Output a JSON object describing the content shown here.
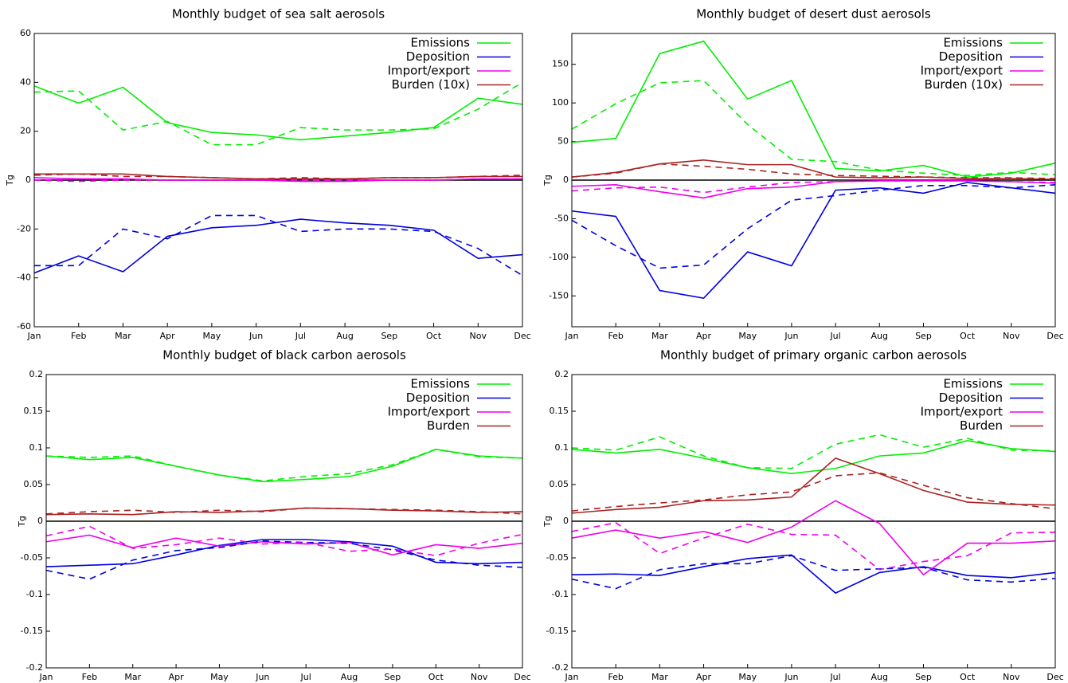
{
  "chart_data": [
    {
      "type": "line",
      "title": "Monthly budget of sea salt  aerosols",
      "y_label": "Tg",
      "categories": [
        "Jan",
        "Feb",
        "Mar",
        "Apr",
        "May",
        "Jun",
        "Jul",
        "Aug",
        "Sep",
        "Oct",
        "Nov",
        "Dec"
      ],
      "ylim": [
        -60,
        60
      ],
      "yticks": [
        -60,
        -40,
        -20,
        0,
        20,
        40,
        60
      ],
      "series": [
        {
          "name": "Emissions",
          "color": "#00ee00",
          "values": [
            38.5,
            31.5,
            38,
            23.5,
            19.5,
            18.5,
            16.5,
            18,
            19.5,
            21.5,
            33.5,
            31
          ]
        },
        {
          "name": "Deposition",
          "color": "#0000dd",
          "values": [
            -38,
            -31,
            -37.5,
            -23,
            -19.5,
            -18.5,
            -16,
            -17.5,
            -18.5,
            -20.5,
            -32,
            -30.5
          ]
        },
        {
          "name": "Import/export",
          "color": "#ee00ee",
          "values": [
            1,
            0.5,
            0.5,
            0,
            0,
            0,
            -0.5,
            -0.5,
            0,
            0,
            0.5,
            0.5
          ]
        },
        {
          "name": "Burden (10x)",
          "color": "#aa2222",
          "values": [
            2.5,
            2.5,
            2.5,
            1.5,
            1,
            0.5,
            0.5,
            0.5,
            1,
            1,
            1.5,
            1.5
          ]
        },
        {
          "color": "#00ee00",
          "dash": true,
          "values": [
            36,
            36.5,
            20.5,
            24,
            14.5,
            14.5,
            21.5,
            20.5,
            20.5,
            21,
            29,
            40
          ]
        },
        {
          "color": "#0000dd",
          "dash": true,
          "values": [
            -35,
            -35,
            -20,
            -24,
            -14.5,
            -14.5,
            -21,
            -20,
            -20,
            -21,
            -28,
            -39
          ]
        },
        {
          "color": "#ee00ee",
          "dash": true,
          "values": [
            0,
            -0.5,
            0,
            0,
            0,
            0,
            0,
            0,
            0,
            0,
            0.5,
            0.5
          ]
        },
        {
          "color": "#aa2222",
          "dash": true,
          "values": [
            2,
            2.5,
            1.5,
            1.5,
            1,
            0.5,
            1,
            0.5,
            1,
            1,
            1.5,
            2
          ]
        }
      ]
    },
    {
      "type": "line",
      "title": "Monthly budget of desert dust aerosols",
      "y_label": "Tg",
      "categories": [
        "Jan",
        "Feb",
        "Mar",
        "Apr",
        "May",
        "Jun",
        "Jul",
        "Aug",
        "Sep",
        "Oct",
        "Nov",
        "Dec"
      ],
      "ylim": [
        -190,
        190
      ],
      "yticks": [
        -150,
        -100,
        -50,
        0,
        50,
        100,
        150
      ],
      "series": [
        {
          "name": "Emissions",
          "color": "#00ee00",
          "values": [
            49,
            54,
            164,
            180,
            105,
            129,
            15,
            12,
            19,
            4,
            9,
            22
          ]
        },
        {
          "name": "Deposition",
          "color": "#0000dd",
          "values": [
            -40,
            -47,
            -143,
            -153,
            -93,
            -111,
            -13,
            -10,
            -17,
            -3,
            -10,
            -17
          ]
        },
        {
          "name": "Import/export",
          "color": "#ee00ee",
          "values": [
            -8,
            -6,
            -15,
            -23,
            -11,
            -9,
            -2,
            -1,
            -1,
            -1,
            -2,
            -4
          ]
        },
        {
          "name": "Burden (10x)",
          "color": "#aa2222",
          "values": [
            4,
            10,
            21,
            26,
            20,
            20,
            4,
            3,
            4,
            2,
            2,
            1
          ]
        },
        {
          "color": "#00ee00",
          "dash": true,
          "values": [
            66,
            99,
            126,
            129,
            72,
            27,
            24,
            13,
            9,
            6,
            10,
            7
          ]
        },
        {
          "color": "#0000dd",
          "dash": true,
          "values": [
            -52,
            -85,
            -114,
            -110,
            -63,
            -26,
            -20,
            -13,
            -7,
            -7,
            -10,
            -6
          ]
        },
        {
          "color": "#ee00ee",
          "dash": true,
          "values": [
            -14,
            -10,
            -9,
            -16,
            -9,
            -3,
            -2,
            -1,
            -1,
            -1,
            -2,
            -3
          ]
        },
        {
          "color": "#aa2222",
          "dash": true,
          "values": [
            4,
            9,
            21,
            18,
            14,
            8,
            6,
            5,
            4,
            3,
            3,
            2
          ]
        }
      ]
    },
    {
      "type": "line",
      "title": "Monthly budget of black carbon aerosols",
      "y_label": "Tg",
      "categories": [
        "Jan",
        "Feb",
        "Mar",
        "Apr",
        "May",
        "Jun",
        "Jul",
        "Aug",
        "Sep",
        "Oct",
        "Nov",
        "Dec"
      ],
      "ylim": [
        -0.2,
        0.2
      ],
      "yticks": [
        -0.2,
        -0.15,
        -0.1,
        -0.05,
        0,
        0.05,
        0.1,
        0.15,
        0.2
      ],
      "series": [
        {
          "name": "Emissions",
          "color": "#00ee00",
          "values": [
            0.089,
            0.084,
            0.087,
            0.075,
            0.063,
            0.054,
            0.057,
            0.061,
            0.075,
            0.098,
            0.089,
            0.086
          ]
        },
        {
          "name": "Deposition",
          "color": "#0000dd",
          "values": [
            -0.062,
            -0.06,
            -0.058,
            -0.046,
            -0.033,
            -0.025,
            -0.025,
            -0.028,
            -0.034,
            -0.056,
            -0.058,
            -0.056
          ]
        },
        {
          "name": "Import/export",
          "color": "#ee00ee",
          "values": [
            -0.028,
            -0.019,
            -0.036,
            -0.023,
            -0.034,
            -0.028,
            -0.031,
            -0.029,
            -0.046,
            -0.032,
            -0.037,
            -0.03
          ]
        },
        {
          "name": "Burden",
          "color": "#aa2222",
          "values": [
            0.009,
            0.01,
            0.009,
            0.013,
            0.012,
            0.014,
            0.018,
            0.017,
            0.015,
            0.014,
            0.012,
            0.013
          ]
        },
        {
          "color": "#00ee00",
          "dash": true,
          "values": [
            0.089,
            0.087,
            0.089,
            0.075,
            0.063,
            0.055,
            0.061,
            0.065,
            0.077,
            0.098,
            0.088,
            0.086
          ]
        },
        {
          "color": "#0000dd",
          "dash": true,
          "values": [
            -0.067,
            -0.079,
            -0.053,
            -0.04,
            -0.036,
            -0.027,
            -0.029,
            -0.03,
            -0.039,
            -0.053,
            -0.06,
            -0.063
          ]
        },
        {
          "color": "#ee00ee",
          "dash": true,
          "values": [
            -0.02,
            -0.007,
            -0.037,
            -0.032,
            -0.023,
            -0.031,
            -0.029,
            -0.041,
            -0.038,
            -0.047,
            -0.03,
            -0.018
          ]
        },
        {
          "color": "#aa2222",
          "dash": true,
          "values": [
            0.01,
            0.013,
            0.015,
            0.012,
            0.015,
            0.013,
            0.018,
            0.017,
            0.016,
            0.015,
            0.013,
            0.01
          ]
        }
      ]
    },
    {
      "type": "line",
      "title": "Monthly budget of primary organic carbon aerosols",
      "y_label": "Tg",
      "categories": [
        "Jan",
        "Feb",
        "Mar",
        "Apr",
        "May",
        "Jun",
        "Jul",
        "Aug",
        "Sep",
        "Oct",
        "Nov",
        "Dec"
      ],
      "ylim": [
        -0.2,
        0.2
      ],
      "yticks": [
        -0.2,
        -0.15,
        -0.1,
        -0.05,
        0,
        0.05,
        0.1,
        0.15,
        0.2
      ],
      "series": [
        {
          "name": "Emissions",
          "color": "#00ee00",
          "values": [
            0.098,
            0.093,
            0.098,
            0.086,
            0.073,
            0.065,
            0.072,
            0.089,
            0.093,
            0.11,
            0.099,
            0.095
          ]
        },
        {
          "name": "Deposition",
          "color": "#0000dd",
          "values": [
            -0.073,
            -0.072,
            -0.074,
            -0.062,
            -0.051,
            -0.046,
            -0.098,
            -0.07,
            -0.062,
            -0.074,
            -0.077,
            -0.07
          ]
        },
        {
          "name": "Import/export",
          "color": "#ee00ee",
          "values": [
            -0.023,
            -0.012,
            -0.023,
            -0.014,
            -0.029,
            -0.008,
            0.028,
            -0.003,
            -0.073,
            -0.03,
            -0.03,
            -0.027
          ]
        },
        {
          "name": "Burden",
          "color": "#aa2222",
          "values": [
            0.011,
            0.016,
            0.019,
            0.028,
            0.029,
            0.033,
            0.086,
            0.065,
            0.042,
            0.026,
            0.023,
            0.022
          ]
        },
        {
          "color": "#00ee00",
          "dash": true,
          "values": [
            0.1,
            0.097,
            0.115,
            0.089,
            0.073,
            0.072,
            0.105,
            0.118,
            0.101,
            0.113,
            0.097,
            0.096
          ]
        },
        {
          "color": "#0000dd",
          "dash": true,
          "values": [
            -0.079,
            -0.092,
            -0.066,
            -0.058,
            -0.058,
            -0.047,
            -0.067,
            -0.065,
            -0.063,
            -0.08,
            -0.083,
            -0.078
          ]
        },
        {
          "color": "#ee00ee",
          "dash": true,
          "values": [
            -0.014,
            -0.002,
            -0.044,
            -0.023,
            -0.004,
            -0.018,
            -0.019,
            -0.066,
            -0.055,
            -0.047,
            -0.016,
            -0.015
          ]
        },
        {
          "color": "#aa2222",
          "dash": true,
          "values": [
            0.014,
            0.02,
            0.025,
            0.029,
            0.036,
            0.04,
            0.062,
            0.066,
            0.049,
            0.032,
            0.024,
            0.017
          ]
        }
      ]
    }
  ]
}
